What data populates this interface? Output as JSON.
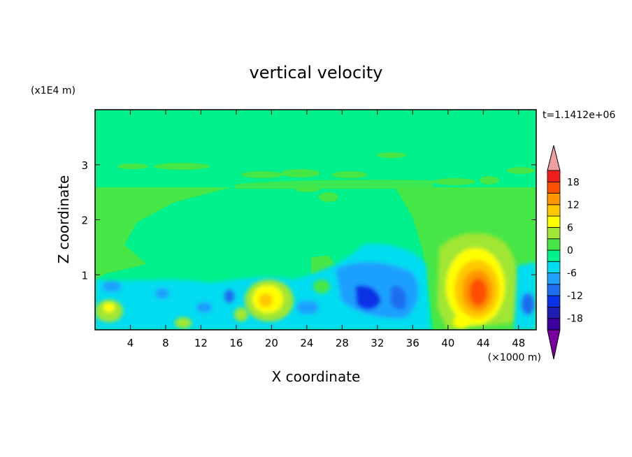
{
  "chart_data": {
    "type": "heatmap",
    "title": "vertical velocity",
    "xlabel": "X coordinate",
    "ylabel": "Z coordinate",
    "x_unit": "(×1000 m)",
    "y_unit": "(x1E4 m)",
    "time_label": "t=1.1412e+06",
    "xlim": [
      0,
      50
    ],
    "ylim": [
      0,
      4
    ],
    "x_ticks": [
      4,
      8,
      12,
      16,
      20,
      24,
      28,
      32,
      36,
      40,
      44,
      48
    ],
    "y_ticks": [
      1,
      2,
      3
    ],
    "colorbar": {
      "levels": [
        -21,
        -18,
        -15,
        -12,
        -9,
        -6,
        -3,
        0,
        3,
        6,
        9,
        12,
        15,
        18,
        21
      ],
      "tick_labels": [
        "18",
        "12",
        "6",
        "0",
        "-6",
        "-12",
        "-18"
      ],
      "colors": [
        "#7800a0",
        "#3c00a0",
        "#1e1eb4",
        "#0a32e6",
        "#1e6ef0",
        "#1ea0ff",
        "#00dcf0",
        "#00f08c",
        "#46e646",
        "#a0e632",
        "#ffff00",
        "#ffc800",
        "#ff9600",
        "#ff5000",
        "#f01e1e",
        "#f0a0a0"
      ]
    },
    "features": [
      {
        "kind": "updraft",
        "x_center": 43.3,
        "z_center": 0.6,
        "peak": 16
      },
      {
        "kind": "updraft",
        "x_center": 19.3,
        "z_center": 0.55,
        "peak": 6
      },
      {
        "kind": "downdraft",
        "x_center": 33,
        "z_center": 0.55,
        "peak": -11
      },
      {
        "kind": "downdraft",
        "x_center": 49,
        "z_center": 0.45,
        "peak": -8
      }
    ]
  }
}
